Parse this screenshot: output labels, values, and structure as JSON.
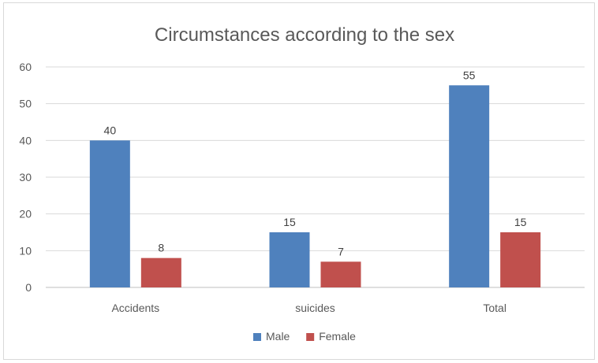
{
  "chart_data": {
    "type": "bar",
    "title": "Circumstances according to the sex",
    "xlabel": "",
    "ylabel": "",
    "categories": [
      "Accidents",
      "suicides",
      "Total"
    ],
    "series": [
      {
        "name": "Male",
        "values": [
          40,
          15,
          55
        ],
        "color": "#4f81bd"
      },
      {
        "name": "Female",
        "values": [
          8,
          7,
          15
        ],
        "color": "#c0504d"
      }
    ],
    "ylim": [
      0,
      60
    ],
    "yticks": [
      0,
      10,
      20,
      30,
      40,
      50,
      60
    ],
    "grid": true,
    "legend_position": "bottom",
    "data_labels": true
  }
}
